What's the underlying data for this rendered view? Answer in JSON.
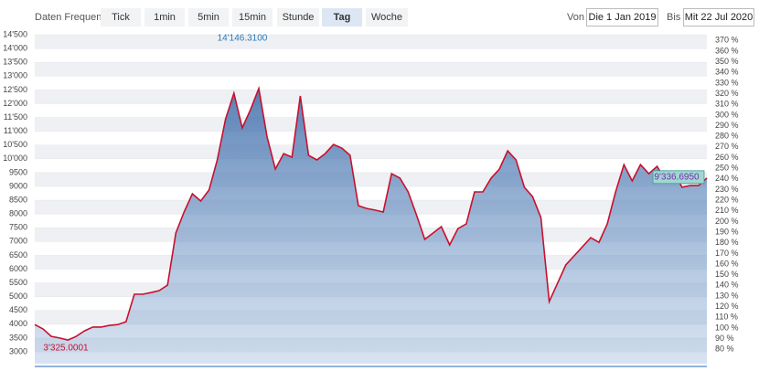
{
  "toolbar": {
    "label": "Daten Frequenz",
    "buttons": [
      "Tick",
      "1min",
      "5min",
      "15min",
      "Stunde",
      "Tag",
      "Woche"
    ],
    "active": 5
  },
  "range": {
    "from_label": "Von",
    "from": "Die 1 Jan 2019",
    "to_label": "Bis",
    "to": "Mit 22 Jul 2020"
  },
  "chart_data": {
    "type": "area",
    "color": "#c8102e",
    "values": [
      3990,
      3830,
      3560,
      3500,
      3430,
      3560,
      3760,
      3900,
      3900,
      3960,
      3990,
      4090,
      5090,
      5090,
      5150,
      5220,
      5420,
      7310,
      8070,
      8730,
      8470,
      8870,
      9960,
      11450,
      12380,
      11120,
      11780,
      12550,
      10790,
      9630,
      10190,
      10060,
      12280,
      10130,
      9960,
      10190,
      10520,
      10390,
      10130,
      8300,
      8200,
      8140,
      8070,
      9460,
      9300,
      8800,
      7970,
      7080,
      7310,
      7540,
      6880,
      7470,
      7640,
      8800,
      8800,
      9300,
      9630,
      10290,
      9960,
      8970,
      8630,
      7870,
      4820,
      5490,
      6150,
      6480,
      6810,
      7140,
      6970,
      7640,
      8800,
      9790,
      9200,
      9790,
      9460,
      9730,
      9200,
      9530,
      8970,
      9030,
      9030,
      9300
    ],
    "ylim": [
      2570,
      14700
    ],
    "yticks": [
      3000,
      3500,
      4000,
      4500,
      5000,
      5500,
      6000,
      6500,
      7000,
      7500,
      8000,
      8500,
      9000,
      9500,
      {
        "value": 10000,
        "label": "10'000"
      },
      {
        "value": 10500,
        "label": "10'500"
      },
      {
        "value": 11000,
        "label": "11'000"
      },
      {
        "value": 11500,
        "label": "11'500"
      },
      {
        "value": 12000,
        "label": "12'000"
      },
      {
        "value": 12500,
        "label": "12'500"
      },
      {
        "value": 13000,
        "label": "13'000"
      },
      {
        "value": 13500,
        "label": "13'500"
      },
      {
        "value": 14000,
        "label": "14'000"
      },
      {
        "value": 14500,
        "label": "14'500"
      }
    ],
    "y2lim": [
      66.5,
      380.6
    ],
    "y2ticks": [
      {
        "value": 80,
        "label": "80 %"
      },
      {
        "value": 90,
        "label": "90 %"
      },
      {
        "value": 100,
        "label": "100 %"
      },
      {
        "value": 110,
        "label": "110 %"
      },
      {
        "value": 120,
        "label": "120 %"
      },
      {
        "value": 130,
        "label": "130 %"
      },
      {
        "value": 140,
        "label": "140 %"
      },
      {
        "value": 150,
        "label": "150 %"
      },
      {
        "value": 160,
        "label": "160 %"
      },
      {
        "value": 170,
        "label": "170 %"
      },
      {
        "value": 180,
        "label": "180 %"
      },
      {
        "value": 190,
        "label": "190 %"
      },
      {
        "value": 200,
        "label": "200 %"
      },
      {
        "value": 210,
        "label": "210 %"
      },
      {
        "value": 220,
        "label": "220 %"
      },
      {
        "value": 230,
        "label": "230 %"
      },
      {
        "value": 240,
        "label": "240 %"
      },
      {
        "value": 250,
        "label": "250 %"
      },
      {
        "value": 260,
        "label": "260 %"
      },
      {
        "value": 270,
        "label": "270 %"
      },
      {
        "value": 280,
        "label": "280 %"
      },
      {
        "value": 290,
        "label": "290 %"
      },
      {
        "value": 300,
        "label": "300 %"
      },
      {
        "value": 310,
        "label": "310 %"
      },
      {
        "value": 320,
        "label": "320 %"
      },
      {
        "value": 330,
        "label": "330 %"
      },
      {
        "value": 340,
        "label": "340 %"
      },
      {
        "value": 350,
        "label": "350 %"
      },
      {
        "value": 360,
        "label": "360 %"
      },
      {
        "value": 370,
        "label": "370 %"
      }
    ],
    "annotations": [
      {
        "label": "14'146.3100",
        "value": 14146.31
      },
      {
        "label": "3'325.0001",
        "value": 3325.0001
      },
      {
        "label": "9'336.6950",
        "value": 9336.695
      }
    ]
  }
}
